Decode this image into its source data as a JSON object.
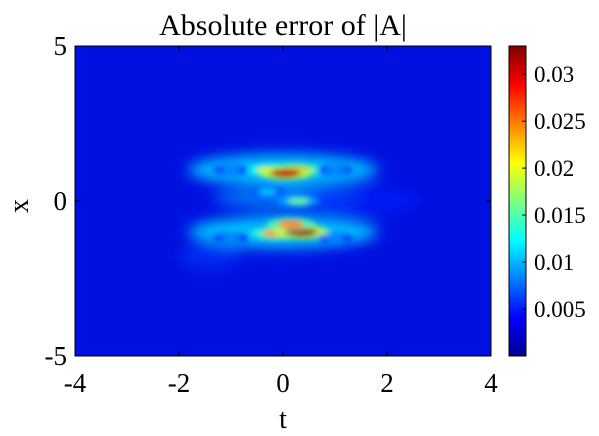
{
  "chart_data": {
    "type": "heatmap",
    "title": "Absolute error of |A|",
    "xlabel": "t",
    "ylabel": "x",
    "xlim": [
      -4,
      4
    ],
    "ylim": [
      -5,
      5
    ],
    "x_ticks": [
      {
        "value": -4,
        "label": "-4"
      },
      {
        "value": -2,
        "label": "-2"
      },
      {
        "value": 0,
        "label": "0"
      },
      {
        "value": 2,
        "label": "2"
      },
      {
        "value": 4,
        "label": "4"
      }
    ],
    "y_ticks": [
      {
        "value": 5,
        "label": "5"
      },
      {
        "value": 0,
        "label": "0"
      },
      {
        "value": -5,
        "label": "-5"
      }
    ],
    "colormap": "jet",
    "color_range": [
      0,
      0.033
    ],
    "colorbar_ticks": [
      {
        "value": 0.03,
        "label": "0.03"
      },
      {
        "value": 0.025,
        "label": "0.025"
      },
      {
        "value": 0.02,
        "label": "0.02"
      },
      {
        "value": 0.015,
        "label": "0.015"
      },
      {
        "value": 0.01,
        "label": "0.01"
      },
      {
        "value": 0.005,
        "label": "0.005"
      }
    ],
    "background_value": 0.001,
    "hotspots": [
      {
        "t": -0.25,
        "x": 1.0,
        "peak": 0.022
      },
      {
        "t": 0.25,
        "x": 1.0,
        "peak": 0.026
      },
      {
        "t": 0.05,
        "x": 0.9,
        "peak": 0.031
      },
      {
        "t": -0.15,
        "x": -1.05,
        "peak": 0.024
      },
      {
        "t": 0.35,
        "x": -1.0,
        "peak": 0.032
      },
      {
        "t": 0.15,
        "x": -0.75,
        "peak": 0.025
      },
      {
        "t": 0.3,
        "x": 0.0,
        "peak": 0.016
      },
      {
        "t": -0.3,
        "x": 0.3,
        "peak": 0.011
      },
      {
        "t": -1.0,
        "x": 1.0,
        "peak": 0.009
      },
      {
        "t": 1.0,
        "x": 1.0,
        "peak": 0.009
      },
      {
        "t": -1.0,
        "x": -1.2,
        "peak": 0.009
      },
      {
        "t": 1.0,
        "x": -1.2,
        "peak": 0.009
      }
    ],
    "grid": false,
    "colorbar_position": "right"
  }
}
